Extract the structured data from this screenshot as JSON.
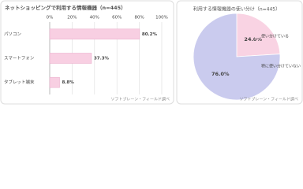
{
  "chart_data": [
    {
      "type": "hbar",
      "title": "ネットショッピングで利用する情報機器（n=445）",
      "categories": [
        "パソコン",
        "スマートフォン",
        "タブレット端末"
      ],
      "values": [
        80.2,
        37.3,
        8.8
      ],
      "value_labels": [
        "80.2%",
        "37.3%",
        "8.8%"
      ],
      "color": "#f8cfe2",
      "xlim": [
        0,
        100
      ],
      "xticks": [
        {
          "value": 0,
          "label": "0%"
        },
        {
          "value": 20,
          "label": "20%"
        },
        {
          "value": 40,
          "label": "40%"
        },
        {
          "value": 60,
          "label": "60%"
        },
        {
          "value": 80,
          "label": "80%"
        },
        {
          "value": 100,
          "label": "100%"
        }
      ],
      "grid": true,
      "source": "ソフトブレーン・フィールド調べ"
    },
    {
      "type": "pie",
      "title": "利用する情報機器の使い分け（n=445）",
      "categories": [
        "使い分けている",
        "特に使い分けていない"
      ],
      "values": [
        24.0,
        76.0
      ],
      "value_labels": [
        "24.0%",
        "76.0%"
      ],
      "colors": [
        "#f9d3e3",
        "#cacbee"
      ],
      "source": "ソフトブレーン・フィールド調べ"
    }
  ]
}
